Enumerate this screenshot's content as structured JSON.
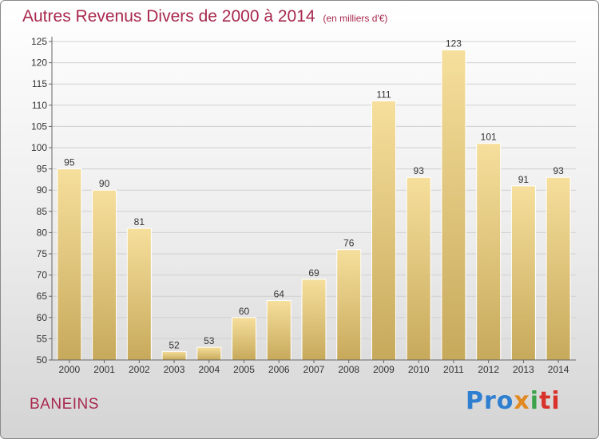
{
  "chart_data": {
    "type": "bar",
    "title": "Autres Revenus Divers de 2000 à 2014",
    "subtitle": "(en milliers d'€)",
    "categories": [
      "2000",
      "2001",
      "2002",
      "2003",
      "2004",
      "2005",
      "2006",
      "2007",
      "2008",
      "2009",
      "2010",
      "2011",
      "2012",
      "2013",
      "2014"
    ],
    "values": [
      95,
      90,
      81,
      52,
      53,
      60,
      64,
      69,
      76,
      111,
      93,
      123,
      101,
      91,
      93
    ],
    "ylim": [
      50,
      125
    ],
    "yticks": [
      50,
      55,
      60,
      65,
      70,
      75,
      80,
      85,
      90,
      95,
      100,
      105,
      110,
      115,
      120,
      125
    ],
    "grid": true,
    "bar_color": "#e9cf86"
  },
  "footer": {
    "location": "BANEINS",
    "logo_parts": [
      "Pro",
      "x",
      "i",
      "ti"
    ]
  },
  "colors": {
    "title": "#a8284e",
    "bar_top": "#f6df9c",
    "bar_bottom": "#c7a95b"
  }
}
